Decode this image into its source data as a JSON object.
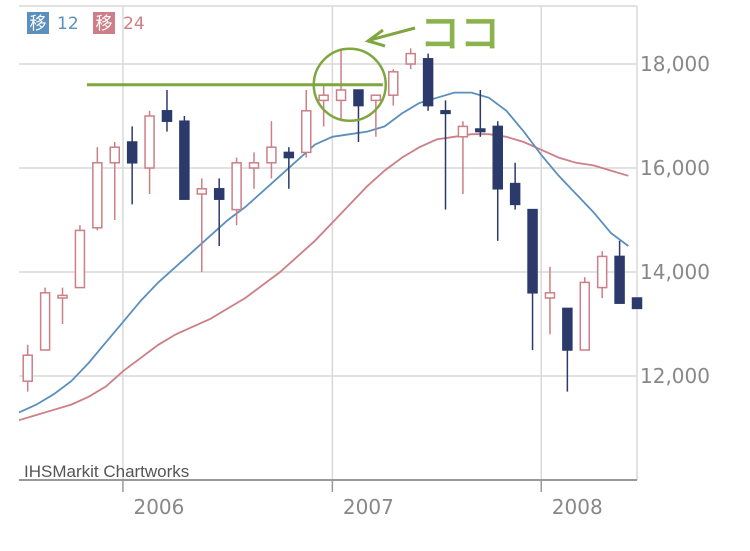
{
  "chart_data": {
    "type": "candlestick",
    "credit": "IHSMarkit Chartworks",
    "legend": [
      {
        "badge": "移",
        "label": "12",
        "color": "#5b8fbd"
      },
      {
        "badge": "移",
        "label": "24",
        "color": "#cc7f86"
      }
    ],
    "annotation_text": "ココ",
    "ylim": [
      10000,
      18700
    ],
    "y_ticks": [
      12000,
      14000,
      16000,
      18000
    ],
    "y_tick_labels": [
      "12,000",
      "14,000",
      "16,000",
      "18,000"
    ],
    "x_ticks": [
      {
        "label": "2006",
        "month": 5.97
      },
      {
        "label": "2007",
        "month": 18.0
      },
      {
        "label": "2008",
        "month": 30.0
      }
    ],
    "x_range_months": [
      0,
      35.5
    ],
    "grid": true,
    "colors": {
      "up": "#cc7f86",
      "down": "#2b3a6b",
      "ma12": "#5b8fbd",
      "ma24": "#cc7f86",
      "annotation": "#7fa63f",
      "grid": "#d9d9d9",
      "axis": "#999999"
    },
    "candles": [
      {
        "m": 0.5,
        "o": 11900,
        "h": 12600,
        "l": 11700,
        "c": 12400
      },
      {
        "m": 1.5,
        "o": 12500,
        "h": 13700,
        "l": 12500,
        "c": 13600
      },
      {
        "m": 2.5,
        "o": 13500,
        "h": 13700,
        "l": 13000,
        "c": 13550
      },
      {
        "m": 3.5,
        "o": 13700,
        "h": 14900,
        "l": 13700,
        "c": 14800
      },
      {
        "m": 4.5,
        "o": 14850,
        "h": 16400,
        "l": 14800,
        "c": 16100
      },
      {
        "m": 5.5,
        "o": 16100,
        "h": 16500,
        "l": 15000,
        "c": 16400
      },
      {
        "m": 6.5,
        "o": 16500,
        "h": 16800,
        "l": 15300,
        "c": 16100
      },
      {
        "m": 7.5,
        "o": 16000,
        "h": 17100,
        "l": 15500,
        "c": 17000
      },
      {
        "m": 8.5,
        "o": 17100,
        "h": 17500,
        "l": 16700,
        "c": 16900
      },
      {
        "m": 9.5,
        "o": 16900,
        "h": 17000,
        "l": 15400,
        "c": 15400
      },
      {
        "m": 10.5,
        "o": 15500,
        "h": 15800,
        "l": 14000,
        "c": 15600
      },
      {
        "m": 11.5,
        "o": 15600,
        "h": 15800,
        "l": 14500,
        "c": 15400
      },
      {
        "m": 12.5,
        "o": 15200,
        "h": 16200,
        "l": 14900,
        "c": 16100
      },
      {
        "m": 13.5,
        "o": 16000,
        "h": 16300,
        "l": 15600,
        "c": 16100
      },
      {
        "m": 14.5,
        "o": 16100,
        "h": 16900,
        "l": 15800,
        "c": 16400
      },
      {
        "m": 15.5,
        "o": 16300,
        "h": 16400,
        "l": 15600,
        "c": 16200
      },
      {
        "m": 16.5,
        "o": 16300,
        "h": 17500,
        "l": 16200,
        "c": 17100
      },
      {
        "m": 17.5,
        "o": 17300,
        "h": 17600,
        "l": 16800,
        "c": 17400
      },
      {
        "m": 18.5,
        "o": 17300,
        "h": 18300,
        "l": 16900,
        "c": 17500
      },
      {
        "m": 19.5,
        "o": 17500,
        "h": 17500,
        "l": 16500,
        "c": 17200
      },
      {
        "m": 20.5,
        "o": 17300,
        "h": 17400,
        "l": 16600,
        "c": 17400
      },
      {
        "m": 21.5,
        "o": 17400,
        "h": 17900,
        "l": 17200,
        "c": 17850
      },
      {
        "m": 22.5,
        "o": 18000,
        "h": 18300,
        "l": 17900,
        "c": 18200
      },
      {
        "m": 23.5,
        "o": 18100,
        "h": 18200,
        "l": 17100,
        "c": 17200
      },
      {
        "m": 24.5,
        "o": 17100,
        "h": 17300,
        "l": 15200,
        "c": 17050
      },
      {
        "m": 25.5,
        "o": 16600,
        "h": 16900,
        "l": 15500,
        "c": 16800
      },
      {
        "m": 26.5,
        "o": 16750,
        "h": 17500,
        "l": 16600,
        "c": 16700
      },
      {
        "m": 27.5,
        "o": 16800,
        "h": 16900,
        "l": 14600,
        "c": 15600
      },
      {
        "m": 28.5,
        "o": 15700,
        "h": 16100,
        "l": 15200,
        "c": 15300
      },
      {
        "m": 29.5,
        "o": 15200,
        "h": 15200,
        "l": 12500,
        "c": 13600
      },
      {
        "m": 30.5,
        "o": 13500,
        "h": 14100,
        "l": 12800,
        "c": 13600
      },
      {
        "m": 31.5,
        "o": 13300,
        "h": 13300,
        "l": 11700,
        "c": 12500
      },
      {
        "m": 32.5,
        "o": 12500,
        "h": 13900,
        "l": 12500,
        "c": 13800
      },
      {
        "m": 33.5,
        "o": 13700,
        "h": 14400,
        "l": 13500,
        "c": 14300
      },
      {
        "m": 34.5,
        "o": 14300,
        "h": 14600,
        "l": 13400,
        "c": 13400
      },
      {
        "m": 35.5,
        "o": 13500,
        "h": 13500,
        "l": 13300,
        "c": 13300
      }
    ],
    "ma12": [
      [
        0,
        11300
      ],
      [
        1,
        11450
      ],
      [
        2,
        11650
      ],
      [
        3,
        11900
      ],
      [
        4,
        12250
      ],
      [
        5,
        12650
      ],
      [
        6,
        13050
      ],
      [
        7,
        13450
      ],
      [
        8,
        13800
      ],
      [
        9,
        14100
      ],
      [
        10,
        14400
      ],
      [
        11,
        14700
      ],
      [
        12,
        15000
      ],
      [
        13,
        15250
      ],
      [
        14,
        15550
      ],
      [
        15,
        15850
      ],
      [
        16,
        16150
      ],
      [
        17,
        16450
      ],
      [
        18,
        16600
      ],
      [
        19,
        16650
      ],
      [
        20,
        16700
      ],
      [
        21,
        16800
      ],
      [
        22,
        17050
      ],
      [
        23,
        17250
      ],
      [
        24,
        17350
      ],
      [
        25,
        17450
      ],
      [
        26,
        17450
      ],
      [
        27,
        17350
      ],
      [
        28,
        17100
      ],
      [
        29,
        16700
      ],
      [
        30,
        16250
      ],
      [
        31,
        15850
      ],
      [
        32,
        15500
      ],
      [
        33,
        15150
      ],
      [
        34,
        14750
      ],
      [
        35,
        14500
      ]
    ],
    "ma24": [
      [
        0,
        11150
      ],
      [
        1,
        11250
      ],
      [
        2,
        11350
      ],
      [
        3,
        11450
      ],
      [
        4,
        11600
      ],
      [
        5,
        11800
      ],
      [
        6,
        12100
      ],
      [
        7,
        12350
      ],
      [
        8,
        12600
      ],
      [
        9,
        12800
      ],
      [
        10,
        12950
      ],
      [
        11,
        13100
      ],
      [
        12,
        13300
      ],
      [
        13,
        13500
      ],
      [
        14,
        13750
      ],
      [
        15,
        14000
      ],
      [
        16,
        14300
      ],
      [
        17,
        14600
      ],
      [
        18,
        14950
      ],
      [
        19,
        15300
      ],
      [
        20,
        15650
      ],
      [
        21,
        15950
      ],
      [
        22,
        16200
      ],
      [
        23,
        16400
      ],
      [
        24,
        16550
      ],
      [
        25,
        16600
      ],
      [
        26,
        16650
      ],
      [
        27,
        16650
      ],
      [
        28,
        16600
      ],
      [
        29,
        16500
      ],
      [
        30,
        16350
      ],
      [
        31,
        16200
      ],
      [
        32,
        16100
      ],
      [
        33,
        16050
      ],
      [
        34,
        15950
      ],
      [
        35,
        15850
      ]
    ],
    "annotation_line": {
      "y": 17600,
      "m_start": 3.9,
      "m_end": 20.9
    },
    "annotation_circle": {
      "m": 19.0,
      "y": 17600
    }
  }
}
